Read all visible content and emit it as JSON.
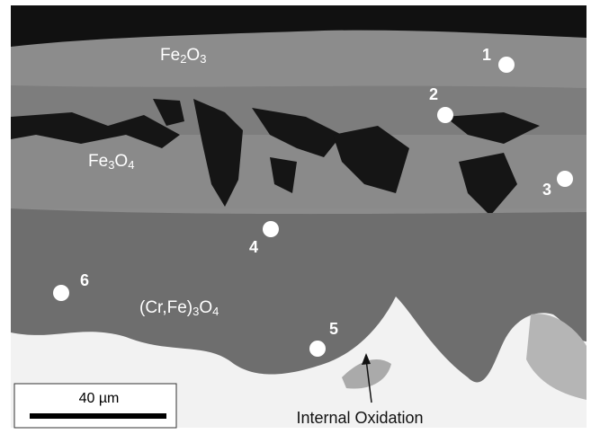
{
  "phase_labels": [
    {
      "parts": [
        "Fe",
        "2",
        "O",
        "3"
      ]
    },
    {
      "parts": [
        "Fe",
        "3",
        "O",
        "4"
      ]
    },
    {
      "parts": [
        "(Cr,Fe)",
        "3",
        "O",
        "4"
      ]
    }
  ],
  "points": [
    {
      "label": "1"
    },
    {
      "label": "2"
    },
    {
      "label": "3"
    },
    {
      "label": "4"
    },
    {
      "label": "5"
    },
    {
      "label": "6"
    }
  ],
  "scale_bar": {
    "label": "40 µm"
  },
  "annotation": {
    "label": "Internal Oxidation"
  }
}
